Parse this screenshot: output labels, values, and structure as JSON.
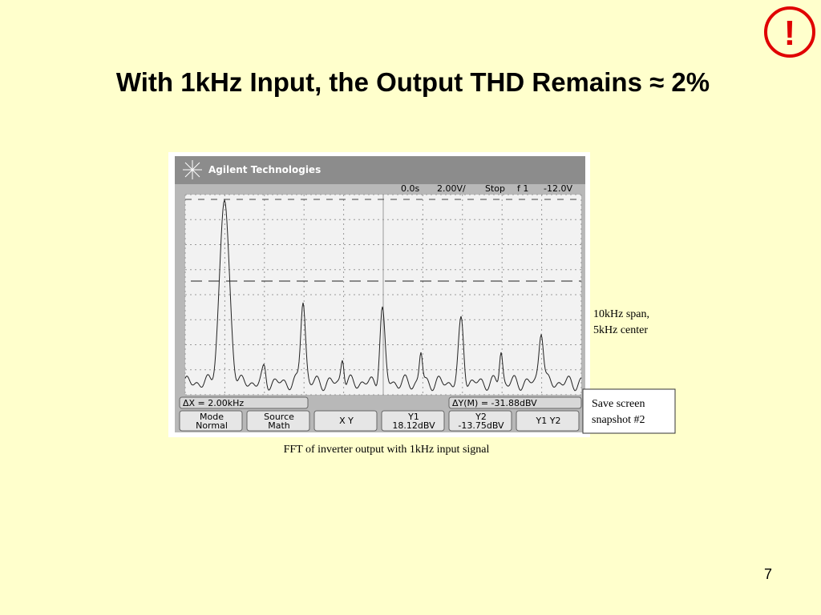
{
  "header": {
    "title": "With 1kHz Input, the Output THD Remains ≈ 2%",
    "alert": "!"
  },
  "scope": {
    "brand": "Agilent Technologies",
    "status": [
      "0.0s",
      "2.00V/",
      "Stop",
      "f 1",
      "-12.0V"
    ],
    "delta_x": "ΔX = 2.00kHz",
    "delta_y": "ΔY(M) = -31.88dBV",
    "softkeys": [
      {
        "label": "Mode",
        "value": "Normal"
      },
      {
        "label": "Source",
        "value": "Math"
      },
      {
        "label": "X     Y"
      },
      {
        "label": "Y1",
        "value": "18.12dBV"
      },
      {
        "label": "Y2",
        "value": "-13.75dBV"
      },
      {
        "label": "Y1  Y2"
      }
    ]
  },
  "notes": {
    "span": [
      "10kHz span,",
      "5kHz center"
    ],
    "button": [
      "Save screen",
      "snapshot #2"
    ]
  },
  "caption": "FFT of inverter output with 1kHz input signal",
  "page_number": "7"
}
